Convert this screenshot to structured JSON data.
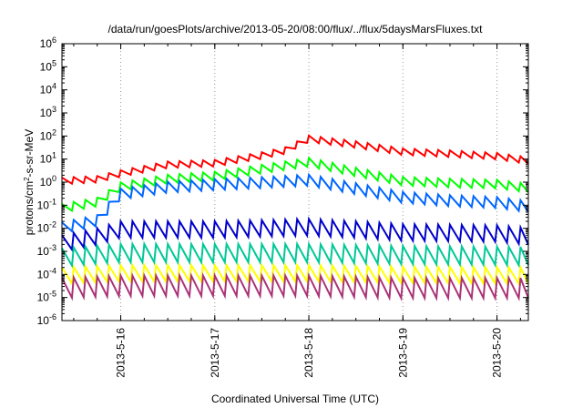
{
  "chart_data": {
    "type": "line",
    "title": "/data/run/goesPlots/archive/2013-05-20/08:00/flux/../flux/5daysMarsFluxes.txt",
    "xlabel": "Coordinated Universal Time (UTC)",
    "ylabel": {
      "base": "protons/cm",
      "sup": "2",
      "rest": "-s-sr-MeV"
    },
    "yscale": "log",
    "ylim_exp": [
      -6,
      6
    ],
    "xlim": [
      "2013-05-15T09:00",
      "2013-05-20T08:00"
    ],
    "x_ticks": [
      "2013-5-16",
      "2013-5-17",
      "2013-5-18",
      "2013-5-19",
      "2013-5-20"
    ],
    "grid": true,
    "series": [
      {
        "color": "#ff0000",
        "sawtooth_pct": 35,
        "points": [
          [
            "2013-05-15T09:00",
            1.2
          ],
          [
            "2013-05-15T18:00",
            1.4
          ],
          [
            "2013-05-16T00:00",
            2.5
          ],
          [
            "2013-05-16T12:00",
            6
          ],
          [
            "2013-05-17T00:00",
            7
          ],
          [
            "2013-05-17T12:00",
            15
          ],
          [
            "2013-05-17T18:00",
            25
          ],
          [
            "2013-05-18T00:00",
            80
          ],
          [
            "2013-05-18T12:00",
            45
          ],
          [
            "2013-05-19T00:00",
            22
          ],
          [
            "2013-05-19T12:00",
            18
          ],
          [
            "2013-05-20T00:00",
            14
          ],
          [
            "2013-05-20T08:00",
            9
          ]
        ]
      },
      {
        "color": "#00ff00",
        "sawtooth_pct": 45,
        "points": [
          [
            "2013-05-15T09:00",
            0.08
          ],
          [
            "2013-05-15T18:00",
            0.15
          ],
          [
            "2013-05-16T00:00",
            0.7
          ],
          [
            "2013-05-16T12:00",
            1.5
          ],
          [
            "2013-05-17T00:00",
            2
          ],
          [
            "2013-05-17T12:00",
            4
          ],
          [
            "2013-05-18T00:00",
            8
          ],
          [
            "2013-05-18T12:00",
            3
          ],
          [
            "2013-05-19T00:00",
            1.2
          ],
          [
            "2013-05-19T12:00",
            1
          ],
          [
            "2013-05-20T00:00",
            0.9
          ],
          [
            "2013-05-20T08:00",
            0.6
          ]
        ]
      },
      {
        "color": "#0066ff",
        "sawtooth_pct": 55,
        "points": [
          [
            "2013-05-15T09:00",
            0.012
          ],
          [
            "2013-05-15T18:00",
            0.025
          ],
          [
            "2013-05-16T00:00",
            0.35
          ],
          [
            "2013-05-16T12:00",
            0.7
          ],
          [
            "2013-05-17T00:00",
            0.9
          ],
          [
            "2013-05-17T12:00",
            1.1
          ],
          [
            "2013-05-18T00:00",
            1.4
          ],
          [
            "2013-05-18T12:00",
            0.6
          ],
          [
            "2013-05-19T00:00",
            0.25
          ],
          [
            "2013-05-19T12:00",
            0.18
          ],
          [
            "2013-05-20T00:00",
            0.15
          ],
          [
            "2013-05-20T08:00",
            0.1
          ]
        ]
      },
      {
        "color": "#0000cc",
        "sawtooth_pct": 75,
        "points": [
          [
            "2013-05-15T09:00",
            0.003
          ],
          [
            "2013-05-15T18:00",
            0.006
          ],
          [
            "2013-05-16T00:00",
            0.012
          ],
          [
            "2013-05-17T00:00",
            0.012
          ],
          [
            "2013-05-18T00:00",
            0.015
          ],
          [
            "2013-05-18T12:00",
            0.012
          ],
          [
            "2013-05-19T00:00",
            0.009
          ],
          [
            "2013-05-20T00:00",
            0.008
          ],
          [
            "2013-05-20T08:00",
            0.006
          ]
        ]
      },
      {
        "color": "#00c896",
        "sawtooth_pct": 80,
        "points": [
          [
            "2013-05-15T09:00",
            0.0008
          ],
          [
            "2013-05-16T00:00",
            0.0012
          ],
          [
            "2013-05-17T00:00",
            0.0012
          ],
          [
            "2013-05-18T00:00",
            0.0012
          ],
          [
            "2013-05-19T00:00",
            0.001
          ],
          [
            "2013-05-20T08:00",
            0.0009
          ]
        ]
      },
      {
        "color": "#ffff00",
        "sawtooth_pct": 75,
        "points": [
          [
            "2013-05-15T09:00",
            0.00012
          ],
          [
            "2013-05-16T00:00",
            0.00015
          ],
          [
            "2013-05-17T00:00",
            0.00015
          ],
          [
            "2013-05-18T00:00",
            0.00015
          ],
          [
            "2013-05-19T00:00",
            0.00013
          ],
          [
            "2013-05-20T08:00",
            0.00012
          ]
        ]
      },
      {
        "color": "#aa3377",
        "sawtooth_pct": 85,
        "points": [
          [
            "2013-05-15T09:00",
            4e-05
          ],
          [
            "2013-05-16T00:00",
            5e-05
          ],
          [
            "2013-05-17T00:00",
            5e-05
          ],
          [
            "2013-05-18T00:00",
            5e-05
          ],
          [
            "2013-05-19T00:00",
            4e-05
          ],
          [
            "2013-05-20T08:00",
            4e-05
          ]
        ]
      }
    ]
  }
}
